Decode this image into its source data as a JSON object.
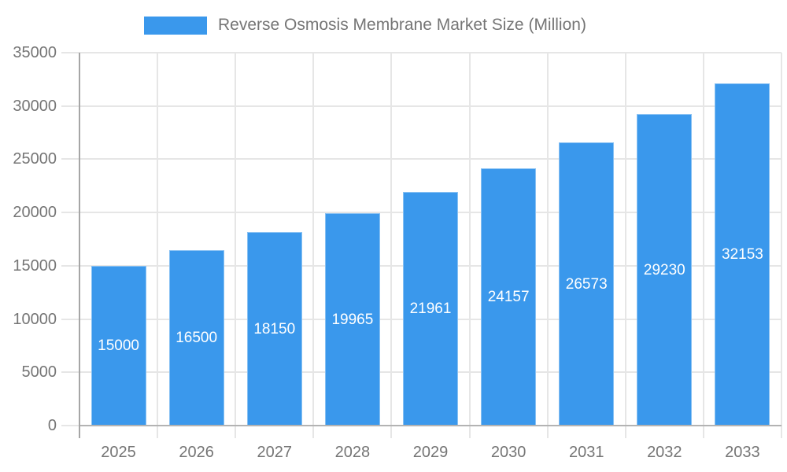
{
  "legend": {
    "label": "Reverse Osmosis Membrane Market Size (Million)"
  },
  "chart_data": {
    "type": "bar",
    "title": "Reverse Osmosis Membrane Market Size (Million)",
    "categories": [
      "2025",
      "2026",
      "2027",
      "2028",
      "2029",
      "2030",
      "2031",
      "2032",
      "2033"
    ],
    "series": [
      {
        "name": "Reverse Osmosis Membrane Market Size (Million)",
        "values": [
          15000,
          16500,
          18150,
          19965,
          21961,
          24157,
          26573,
          29230,
          32153
        ]
      }
    ],
    "bar_value_labels": [
      "15000",
      "16500",
      "18150",
      "19965",
      "21961",
      "24157",
      "26573",
      "29230",
      "32153"
    ],
    "xlabel": "",
    "ylabel": "",
    "ylim": [
      0,
      35000
    ],
    "yticks": [
      0,
      5000,
      10000,
      15000,
      20000,
      25000,
      30000,
      35000
    ],
    "grid": true,
    "legend_position": "top",
    "colors": {
      "bar": "#3A98EC",
      "bar_border": "rgba(255,255,255,0.40)",
      "bar_label": "#ffffff",
      "axis_text": "#757575",
      "grid": "#e6e6e6",
      "axis_line": "#a6a6a6",
      "baseline": "#b3b3b3"
    }
  }
}
